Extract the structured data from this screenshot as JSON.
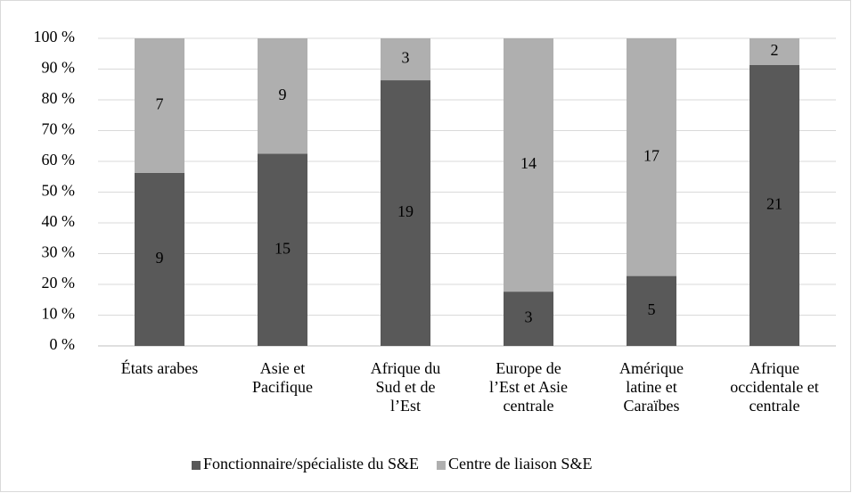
{
  "chart_data": {
    "type": "bar",
    "normalize": true,
    "categories": [
      "États arabes",
      "Asie et\nPacifique",
      "Afrique du\nSud et de\nl’Est",
      "Europe de\nl’Est et Asie\ncentrale",
      "Amérique\nlatine et\nCaraïbes",
      "Afrique\noccidentale et\ncentrale"
    ],
    "series": [
      {
        "name": "Fonctionnaire/spécialiste du S&E",
        "color": "#595959",
        "values": [
          9,
          15,
          19,
          3,
          5,
          21
        ]
      },
      {
        "name": "Centre de liaison S&E",
        "color": "#afafaf",
        "values": [
          7,
          9,
          3,
          14,
          17,
          2
        ]
      }
    ],
    "ylim": [
      0,
      100
    ],
    "yticks": [
      {
        "value": 0,
        "label": "0 %"
      },
      {
        "value": 10,
        "label": "10 %"
      },
      {
        "value": 20,
        "label": "20 %"
      },
      {
        "value": 30,
        "label": "30 %"
      },
      {
        "value": 40,
        "label": "40 %"
      },
      {
        "value": 50,
        "label": "50 %"
      },
      {
        "value": 60,
        "label": "60 %"
      },
      {
        "value": 70,
        "label": "70 %"
      },
      {
        "value": 80,
        "label": "80 %"
      },
      {
        "value": 90,
        "label": "90 %"
      },
      {
        "value": 100,
        "label": "100 %"
      }
    ],
    "grid": true,
    "legend": "bottom"
  }
}
